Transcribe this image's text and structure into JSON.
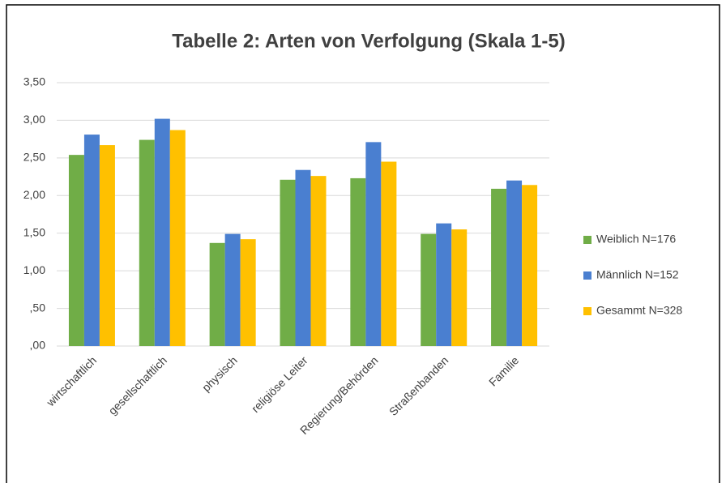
{
  "chart_data": {
    "type": "bar",
    "title": "Tabelle 2: Arten von Verfolgung (Skala 1-5)",
    "categories": [
      "wirtschaftlich",
      "gesellschaftlich",
      "physisch",
      "religiöse Leiter",
      "Regierung/Behörden",
      "Straßenbanden",
      "Familie"
    ],
    "series": [
      {
        "name": "Weiblich N=176",
        "color": "#70ad47",
        "values": [
          2.54,
          2.74,
          1.37,
          2.21,
          2.23,
          1.49,
          2.09
        ]
      },
      {
        "name": "Männlich N=152",
        "color": "#4a7fd0",
        "values": [
          2.81,
          3.02,
          1.49,
          2.34,
          2.71,
          1.63,
          2.2
        ]
      },
      {
        "name": "Gesammt N=328",
        "color": "#ffc000",
        "values": [
          2.67,
          2.87,
          1.42,
          2.26,
          2.45,
          1.55,
          2.14
        ]
      }
    ],
    "ylim": [
      0,
      3.5
    ],
    "yticks": [
      {
        "value": 0,
        "label": ",00"
      },
      {
        "value": 0.5,
        "label": ",50"
      },
      {
        "value": 1,
        "label": "1,00"
      },
      {
        "value": 1.5,
        "label": "1,50"
      },
      {
        "value": 2,
        "label": "2,00"
      },
      {
        "value": 2.5,
        "label": "2,50"
      },
      {
        "value": 3,
        "label": "3,00"
      },
      {
        "value": 3.5,
        "label": "3,50"
      }
    ],
    "grid": true,
    "legend": "right"
  }
}
